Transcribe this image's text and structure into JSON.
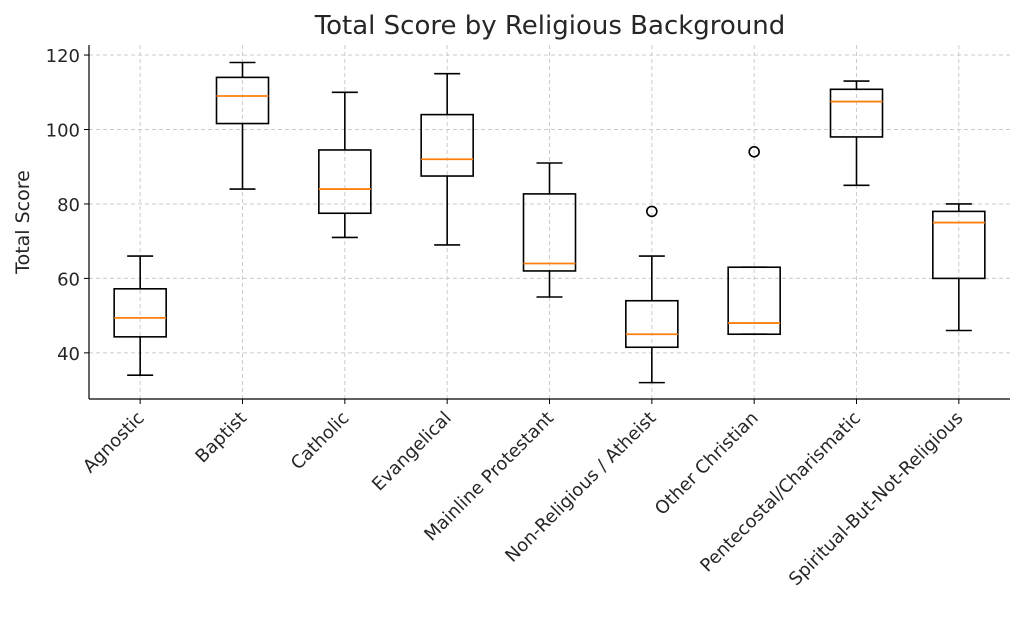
{
  "chart_data": {
    "type": "boxplot",
    "title": "Total Score by Religious Background",
    "xlabel": "",
    "ylabel": "Total Score",
    "ylim": [
      27.6,
      122.7
    ],
    "yticks": [
      40,
      60,
      80,
      100,
      120
    ],
    "grid": true,
    "median_color": "#ff7f0e",
    "categories": [
      "Agnostic",
      "Baptist",
      "Catholic",
      "Evangelical",
      "Mainline Protestant",
      "Non-Religious / Atheist",
      "Other Christian",
      "Pentecostal/Charismatic",
      "Spiritual-But-Not-Religious"
    ],
    "boxes": [
      {
        "whislo": 34,
        "q1": 44.3,
        "med": 49.4,
        "q3": 57.2,
        "whishi": 66,
        "fliers": []
      },
      {
        "whislo": 84,
        "q1": 101.6,
        "med": 109,
        "q3": 114,
        "whishi": 118,
        "fliers": []
      },
      {
        "whislo": 71,
        "q1": 77.5,
        "med": 84,
        "q3": 94.5,
        "whishi": 110,
        "fliers": []
      },
      {
        "whislo": 69,
        "q1": 87.5,
        "med": 92,
        "q3": 104,
        "whishi": 115,
        "fliers": []
      },
      {
        "whislo": 55,
        "q1": 62,
        "med": 64,
        "q3": 82.7,
        "whishi": 91,
        "fliers": []
      },
      {
        "whislo": 32,
        "q1": 41.5,
        "med": 45,
        "q3": 54,
        "whishi": 66,
        "fliers": [
          78
        ]
      },
      {
        "whislo": 45,
        "q1": 45,
        "med": 48,
        "q3": 63,
        "whishi": 63,
        "fliers": [
          94
        ]
      },
      {
        "whislo": 85,
        "q1": 98,
        "med": 107.5,
        "q3": 110.8,
        "whishi": 113,
        "fliers": []
      },
      {
        "whislo": 46,
        "q1": 60,
        "med": 75,
        "q3": 78,
        "whishi": 80,
        "fliers": []
      }
    ]
  }
}
